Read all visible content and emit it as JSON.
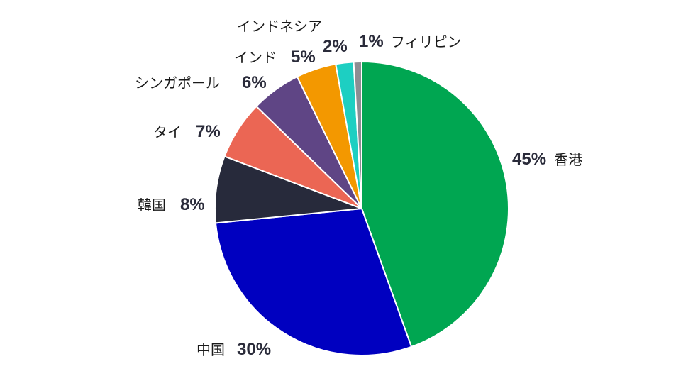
{
  "chart_data": {
    "type": "pie",
    "title": "",
    "start_angle_deg": 0,
    "direction": "clockwise",
    "slices": [
      {
        "name": "香港",
        "pct_label": "45%",
        "value": 45.4,
        "color": "#00a651"
      },
      {
        "name": "中国",
        "pct_label": "30%",
        "value": 29.5,
        "color": "#0000c0"
      },
      {
        "name": "韓国",
        "pct_label": "8%",
        "value": 7.5,
        "color": "#272a3b"
      },
      {
        "name": "タイ",
        "pct_label": "7%",
        "value": 6.6,
        "color": "#eb6654"
      },
      {
        "name": "シンガポール",
        "pct_label": "6%",
        "value": 5.6,
        "color": "#5f4585"
      },
      {
        "name": "インド",
        "pct_label": "5%",
        "value": 4.5,
        "color": "#f39800"
      },
      {
        "name": "インドネシア",
        "pct_label": "2%",
        "value": 2.0,
        "color": "#1dcfc2"
      },
      {
        "name": "フィリピン",
        "pct_label": "1%",
        "value": 0.9,
        "color": "#8d8d93"
      }
    ]
  }
}
